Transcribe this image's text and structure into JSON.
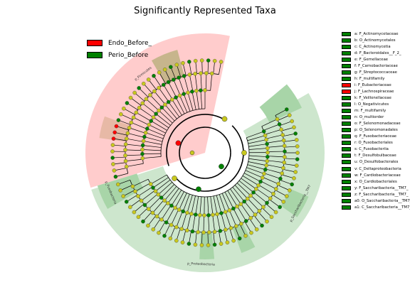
{
  "title": "Significantly Represented Taxa",
  "colors": {
    "Endo_Before_": "#ff0000",
    "Perio_Before": "#008000",
    "node_neutral": "#c8c81e",
    "shade_endo": "#ffcccc",
    "shade_perio": "#cde6cd"
  },
  "legend": [
    {
      "label": "Endo_Before_",
      "color": "#ff0000"
    },
    {
      "label": "Perio_Before",
      "color": "#008000"
    }
  ],
  "chart_data": {
    "type": "cladogram",
    "title": "Significantly Represented Taxa",
    "groups": [
      "Endo_Before_",
      "Perio_Before"
    ],
    "clade_labels": [
      {
        "label": "p_Firmicutes",
        "group": "Endo_Before_"
      },
      {
        "label": "p_Fusobacteria",
        "group": "Perio_Before"
      },
      {
        "label": "p_Proteobacteria",
        "group": "Perio_Before"
      },
      {
        "label": "p_Saccharibacteria__TM7",
        "group": "Perio_Before"
      }
    ],
    "taxa": [
      {
        "key": "a",
        "name": "F_Actinomycetaceae",
        "group": "Perio_Before"
      },
      {
        "key": "b",
        "name": "O_Actinomycetales",
        "group": "Perio_Before"
      },
      {
        "key": "c",
        "name": "C_Actinomycetia",
        "group": "Perio_Before"
      },
      {
        "key": "d",
        "name": "F_Bacteroidales__F_2_",
        "group": "Perio_Before"
      },
      {
        "key": "e",
        "name": "F_Gemellaceae",
        "group": "Perio_Before"
      },
      {
        "key": "f",
        "name": "F_Carnobacteriaceae",
        "group": "Perio_Before"
      },
      {
        "key": "g",
        "name": "F_Streptococcaceae",
        "group": "Perio_Before"
      },
      {
        "key": "h",
        "name": "F_multifamily",
        "group": "Perio_Before"
      },
      {
        "key": "i",
        "name": "F_Eubacteriaceae",
        "group": "Endo_Before_"
      },
      {
        "key": "j",
        "name": "F_Lachnospiraceae",
        "group": "Endo_Before_"
      },
      {
        "key": "k",
        "name": "F_Veillonellaceae",
        "group": "Perio_Before"
      },
      {
        "key": "l",
        "name": "O_Negativicutes",
        "group": "Perio_Before"
      },
      {
        "key": "m",
        "name": "F_multifamily",
        "group": "Perio_Before"
      },
      {
        "key": "n",
        "name": "O_multiorder",
        "group": "Perio_Before"
      },
      {
        "key": "o",
        "name": "F_Selenomonadaceae",
        "group": "Perio_Before"
      },
      {
        "key": "p",
        "name": "O_Selenomonadales",
        "group": "Perio_Before"
      },
      {
        "key": "q",
        "name": "F_Fusobacteriaceae",
        "group": "Perio_Before"
      },
      {
        "key": "r",
        "name": "O_Fusobacteriales",
        "group": "Perio_Before"
      },
      {
        "key": "s",
        "name": "C_Fusobacteriia",
        "group": "Perio_Before"
      },
      {
        "key": "t",
        "name": "F_Desulfobulbaceae",
        "group": "Perio_Before"
      },
      {
        "key": "u",
        "name": "O_Desulfobacterales",
        "group": "Perio_Before"
      },
      {
        "key": "v",
        "name": "C_Deltaproteobacteria",
        "group": "Perio_Before"
      },
      {
        "key": "w",
        "name": "F_Cardiobacteriaceae",
        "group": "Perio_Before"
      },
      {
        "key": "x",
        "name": "O_Cardiobacteriales",
        "group": "Perio_Before"
      },
      {
        "key": "y",
        "name": "F_Saccharibacteria__TM7_",
        "group": "Perio_Before"
      },
      {
        "key": "z",
        "name": "F_Saccharibacteria__TM7_",
        "group": "Perio_Before"
      },
      {
        "key": "a0",
        "name": "O_Saccharibacteria__TM7_",
        "group": "Perio_Before"
      },
      {
        "key": "a1",
        "name": "C_Saccharibacteria__TM7_",
        "group": "Perio_Before"
      }
    ]
  }
}
